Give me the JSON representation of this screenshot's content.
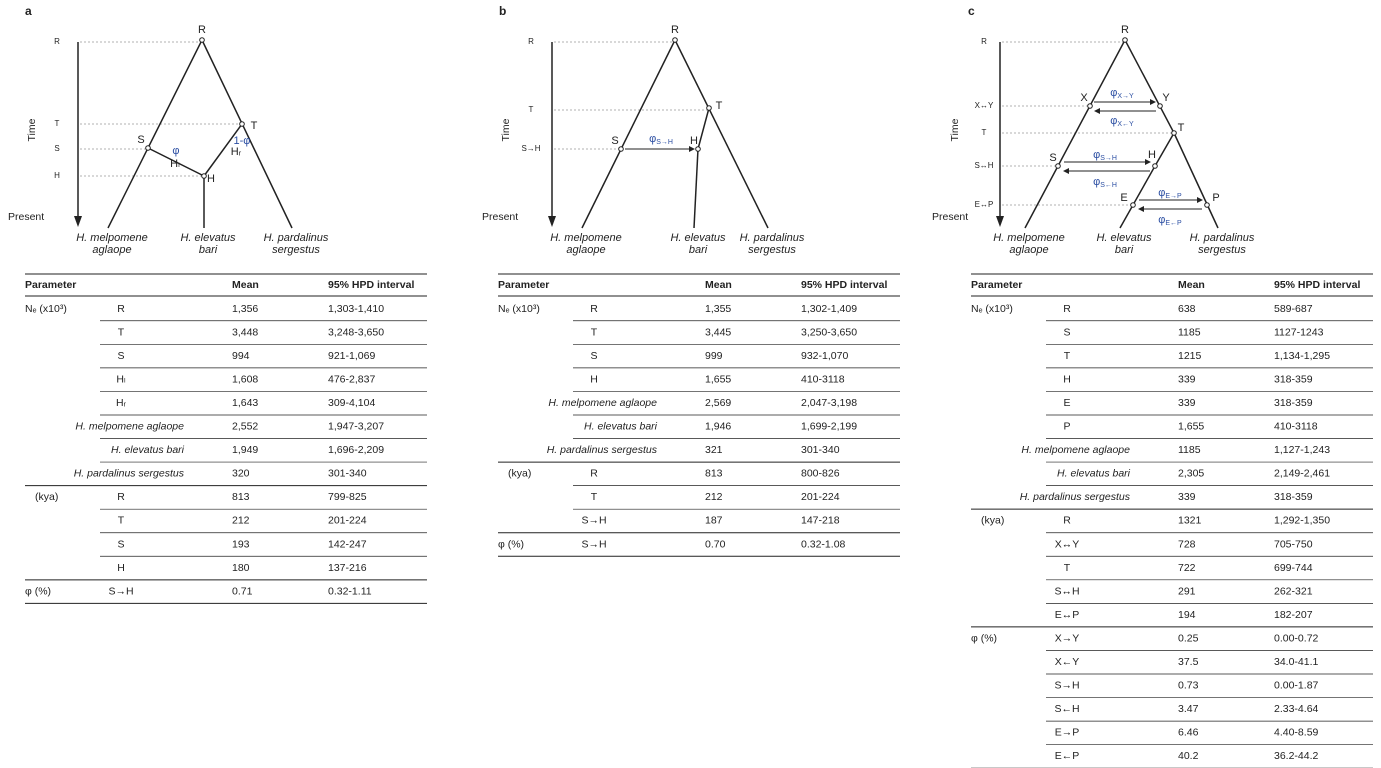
{
  "panels": [
    {
      "label": "a",
      "tree": {
        "axis_label": "Time",
        "present": "Present",
        "time_labels": [
          {
            "text": "R"
          },
          {
            "text": "T",
            "color": "#c0504d"
          },
          {
            "text": "S",
            "color": "#c0504d"
          },
          {
            "text": "H",
            "color": "#c0504d"
          }
        ],
        "nodes": [
          "R",
          "S",
          "T",
          "H"
        ],
        "branch_labels": [
          "Hₗ",
          "Hᵣ"
        ],
        "rates": [
          {
            "label": "φ"
          },
          {
            "label": "1-φ"
          }
        ],
        "leaves": [
          [
            "H. melpomene",
            "aglaope"
          ],
          [
            "H. elevatus",
            "bari"
          ],
          [
            "H. pardalinus",
            "sergestus"
          ]
        ]
      },
      "table": {
        "headers": [
          "Parameter",
          "Mean",
          "95% HPD interval"
        ],
        "groups": [
          {
            "name": "Nₑ (x10³)",
            "rows": [
              {
                "param": "R",
                "mean": "1,356",
                "hpd": "1,303-1,410"
              },
              {
                "param": "T",
                "mean": "3,448",
                "hpd": "3,248-3,650"
              },
              {
                "param": "S",
                "mean": "994",
                "hpd": "921-1,069"
              },
              {
                "param": "Hₗ",
                "mean": "1,608",
                "hpd": "476-2,837"
              },
              {
                "param": "Hᵣ",
                "mean": "1,643",
                "hpd": "309-4,104"
              },
              {
                "param": "H. melpomene aglaope",
                "mean": "2,552",
                "hpd": "1,947-3,207"
              },
              {
                "param": "H. elevatus bari",
                "mean": "1,949",
                "hpd": "1,696-2,209"
              },
              {
                "param": "H. pardalinus sergestus",
                "mean": "320",
                "hpd": "301-340"
              }
            ]
          },
          {
            "name": "(kya)",
            "rows": [
              {
                "param": "R",
                "mean": "813",
                "hpd": "799-825"
              },
              {
                "param": "T",
                "mean": "212",
                "hpd": "201-224",
                "color": "#c0504d"
              },
              {
                "param": "S",
                "mean": "193",
                "hpd": "142-247",
                "color": "#c0504d"
              },
              {
                "param": "H",
                "mean": "180",
                "hpd": "137-216",
                "color": "#c0504d"
              }
            ]
          },
          {
            "name": "φ (%)",
            "rows": [
              {
                "param": "S→H",
                "mean": "0.71",
                "hpd": "0.32-1.11"
              }
            ]
          }
        ]
      }
    },
    {
      "label": "b",
      "tree": {
        "axis_label": "Time",
        "present": "Present",
        "time_labels": [
          {
            "text": "R"
          },
          {
            "text": "T",
            "color": "#c0504d"
          },
          {
            "text": "S→H",
            "color": "#c0504d"
          }
        ],
        "nodes": [
          "R",
          "T",
          "S",
          "H"
        ],
        "branch_labels": [],
        "rates": [
          {
            "label": "φ",
            "sub": "S→H"
          }
        ],
        "leaves": [
          [
            "H. melpomene",
            "aglaope"
          ],
          [
            "H. elevatus",
            "bari"
          ],
          [
            "H. pardalinus",
            "sergestus"
          ]
        ]
      },
      "table": {
        "headers": [
          "Parameter",
          "Mean",
          "95% HPD interval"
        ],
        "groups": [
          {
            "name": "Nₑ (x10³)",
            "rows": [
              {
                "param": "R",
                "mean": "1,355",
                "hpd": "1,302-1,409"
              },
              {
                "param": "T",
                "mean": "3,445",
                "hpd": "3,250-3,650"
              },
              {
                "param": "S",
                "mean": "999",
                "hpd": "932-1,070"
              },
              {
                "param": "H",
                "mean": "1,655",
                "hpd": "410-3118"
              },
              {
                "param": "H. melpomene aglaope",
                "mean": "2,569",
                "hpd": "2,047-3,198"
              },
              {
                "param": "H. elevatus bari",
                "mean": "1,946",
                "hpd": "1,699-2,199"
              },
              {
                "param": "H. pardalinus sergestus",
                "mean": "321",
                "hpd": "301-340"
              }
            ]
          },
          {
            "name": "(kya)",
            "rows": [
              {
                "param": "R",
                "mean": "813",
                "hpd": "800-826"
              },
              {
                "param": "T",
                "mean": "212",
                "hpd": "201-224",
                "color": "#c0504d"
              },
              {
                "param": "S→H",
                "mean": "187",
                "hpd": "147-218",
                "color": "#c0504d"
              }
            ]
          },
          {
            "name": "φ (%)",
            "rows": [
              {
                "param": "S→H",
                "mean": "0.70",
                "hpd": "0.32-1.08"
              }
            ]
          }
        ]
      }
    },
    {
      "label": "c",
      "tree": {
        "axis_label": "Time",
        "present": "Present",
        "time_labels": [
          {
            "text": "R"
          },
          {
            "text": "X↔Y",
            "color": "#c0504d"
          },
          {
            "text": "T",
            "color": "#c0504d"
          },
          {
            "text": "S↔H"
          },
          {
            "text": "E↔P"
          }
        ],
        "nodes": [
          "R",
          "X",
          "Y",
          "T",
          "S",
          "H",
          "E",
          "P"
        ],
        "branch_labels": [],
        "rates": [
          {
            "label": "φ",
            "sub": "X→Y"
          },
          {
            "label": "φ",
            "sub": "X←Y"
          },
          {
            "label": "φ",
            "sub": "S→H"
          },
          {
            "label": "φ",
            "sub": "S←H"
          },
          {
            "label": "φ",
            "sub": "E→P"
          },
          {
            "label": "φ",
            "sub": "E←P"
          }
        ],
        "leaves": [
          [
            "H. melpomene",
            "aglaope"
          ],
          [
            "H. elevatus",
            "bari"
          ],
          [
            "H. pardalinus",
            "sergestus"
          ]
        ]
      },
      "table": {
        "headers": [
          "Parameter",
          "Mean",
          "95% HPD interval"
        ],
        "groups": [
          {
            "name": "Nₑ (x10³)",
            "rows": [
              {
                "param": "R",
                "mean": "638",
                "hpd": "589-687"
              },
              {
                "param": "S",
                "mean": "1185",
                "hpd": "1127-1243"
              },
              {
                "param": "T",
                "mean": "1215",
                "hpd": "1,134-1,295"
              },
              {
                "param": "H",
                "mean": "339",
                "hpd": "318-359"
              },
              {
                "param": "E",
                "mean": "339",
                "hpd": "318-359"
              },
              {
                "param": "P",
                "mean": "1,655",
                "hpd": "410-3118"
              },
              {
                "param": "H. melpomene aglaope",
                "mean": "1185",
                "hpd": "1,127-1,243"
              },
              {
                "param": "H. elevatus bari",
                "mean": "2,305",
                "hpd": "2,149-2,461"
              },
              {
                "param": "H. pardalinus sergestus",
                "mean": "339",
                "hpd": "318-359"
              }
            ]
          },
          {
            "name": "(kya)",
            "rows": [
              {
                "param": "R",
                "mean": "1321",
                "hpd": "1,292-1,350"
              },
              {
                "param": "X↔Y",
                "mean": "728",
                "hpd": "705-750",
                "color": "#c0504d"
              },
              {
                "param": "T",
                "mean": "722",
                "hpd": "699-744",
                "color": "#c0504d"
              },
              {
                "param": "S↔H",
                "mean": "291",
                "hpd": "262-321"
              },
              {
                "param": "E↔P",
                "mean": "194",
                "hpd": "182-207"
              }
            ]
          },
          {
            "name": "φ (%)",
            "rows": [
              {
                "param": "X→Y",
                "mean": "0.25",
                "hpd": "0.00-0.72"
              },
              {
                "param": "X←Y",
                "mean": "37.5",
                "hpd": "34.0-41.1"
              },
              {
                "param": "S→H",
                "mean": "0.73",
                "hpd": "0.00-1.87"
              },
              {
                "param": "S←H",
                "mean": "3.47",
                "hpd": "2.33-4.64"
              },
              {
                "param": "E→P",
                "mean": "6.46",
                "hpd": "4.40-8.59"
              },
              {
                "param": "E←P",
                "mean": "40.2",
                "hpd": "36.2-44.2"
              }
            ]
          }
        ]
      }
    }
  ]
}
